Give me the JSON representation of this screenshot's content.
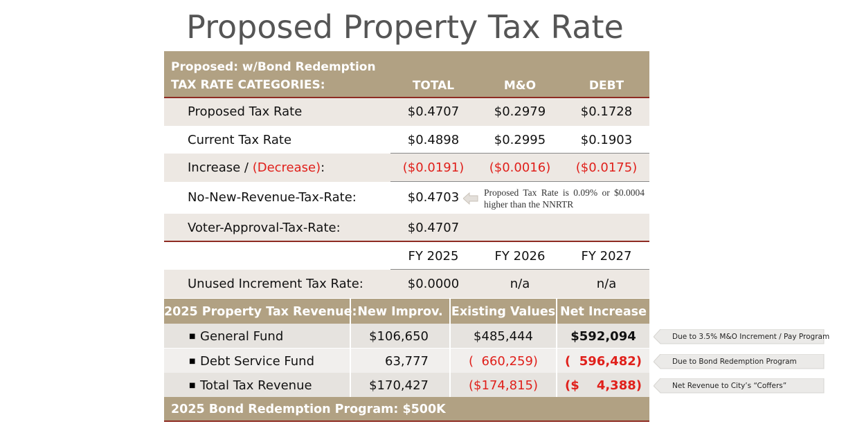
{
  "title": "Proposed Property Tax Rate",
  "rate_table": {
    "header": {
      "label_lines": [
        "Proposed: w/Bond Redemption",
        "TAX RATE CATEGORIES:"
      ],
      "columns": [
        "TOTAL",
        "M&O",
        "DEBT"
      ]
    },
    "rows": [
      {
        "label": "Proposed Tax Rate",
        "cells": [
          "$0.4707",
          "$0.2979",
          "$0.1728"
        ]
      },
      {
        "label": "Current Tax Rate",
        "cells": [
          "$0.4898",
          "$0.2995",
          "$0.1903"
        ]
      },
      {
        "label_parts": [
          "Increase / ",
          "(Decrease)",
          ":"
        ],
        "cells": [
          "($0.0191)",
          "($0.0016)",
          "($0.0175)"
        ]
      },
      {
        "label": "No-New-Revenue-Tax-Rate:",
        "cells": [
          "$0.4703"
        ],
        "note": "Proposed Tax Rate is 0.09% or $0.0004 higher than the NNRTR"
      },
      {
        "label": "Voter-Approval-Tax-Rate:",
        "cells": [
          "$0.4707"
        ]
      }
    ],
    "fiscal_years": [
      "FY 2025",
      "FY 2026",
      "FY 2027"
    ],
    "unused_row": {
      "label": "Unused Increment Tax Rate:",
      "cells": [
        "$0.0000",
        "n/a",
        "n/a"
      ]
    }
  },
  "revenue_table": {
    "header": [
      "2025 Property Tax Revenue:",
      "New Improv.",
      "Existing Values",
      "Net Increase"
    ],
    "rows": [
      {
        "label": "General Fund",
        "cells": [
          "$106,650",
          "$485,444",
          "$592,094"
        ],
        "note": "Due to 3.5% M&O Increment / Pay Program"
      },
      {
        "label": "Debt Service Fund",
        "cells": [
          "63,777",
          "(  660,259)",
          "(  596,482)"
        ],
        "note": "Due to Bond Redemption Program"
      },
      {
        "label": "Total Tax Revenue",
        "cells": [
          "$170,427",
          "($174,815)",
          "($    4,388)"
        ],
        "note": "Net Revenue to City’s “Coffers”"
      }
    ],
    "footer": "2025 Bond Redemption Program: $500K"
  }
}
